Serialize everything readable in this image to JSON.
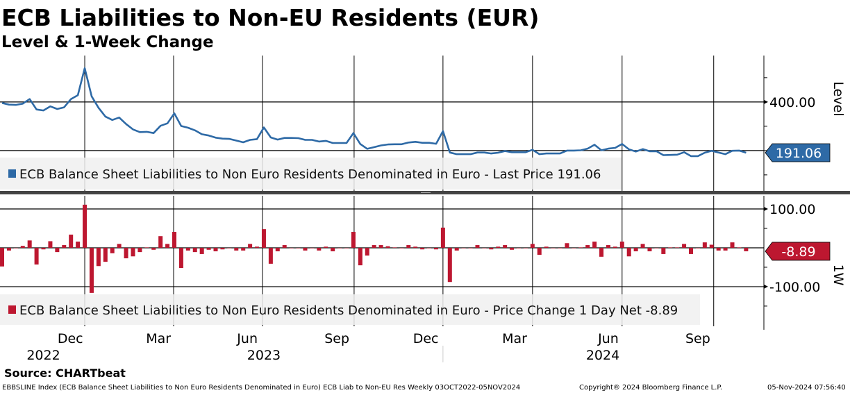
{
  "header": {
    "title": "ECB Liabilities to Non-EU Residents (EUR)",
    "subtitle": "Level & 1-Week Change"
  },
  "footer": {
    "source": "Source: CHARTbeat",
    "description": "EBBSLINE Index (ECB Balance Sheet Liabilities to Non Euro Residents Denominated in Euro) ECB Liab to Non-EU Res  Weekly 03OCT2022-05NOV2024",
    "copyright": "Copyright® 2024 Bloomberg Finance L.P.",
    "timestamp": "05-Nov-2024 07:56:40"
  },
  "colors": {
    "level": "#2e6aa6",
    "change": "#bd1730",
    "legend_bg": "#f0f0f0"
  },
  "chart_data": [
    {
      "type": "line",
      "title": "Level",
      "ylabel": "Level",
      "ylim": [
        34,
        591
      ],
      "yticks": [
        {
          "value": 400,
          "label": "400.00"
        }
      ],
      "minor_yticks": [
        100,
        200,
        300,
        500
      ],
      "gridlines_y": [
        200,
        400
      ],
      "legend": "ECB Balance Sheet Liabilities to Non Euro Residents Denominated in Euro - Last Price 191.06",
      "last_label": "191.06",
      "x_start": "03OCT2022",
      "x_end": "05NOV2024",
      "frequency": "Weekly",
      "values": [
        396,
        389,
        388,
        393,
        412,
        369,
        365,
        382,
        371,
        378,
        412,
        428,
        539,
        423,
        376,
        340,
        326,
        336,
        309,
        287,
        276,
        277,
        272,
        302,
        312,
        353,
        301,
        294,
        283,
        267,
        262,
        253,
        249,
        248,
        241,
        234,
        244,
        247,
        295,
        254,
        245,
        252,
        252,
        251,
        244,
        244,
        237,
        240,
        231,
        231,
        231,
        272,
        227,
        207,
        214,
        221,
        225,
        226,
        226,
        233,
        236,
        232,
        232,
        228,
        280,
        192,
        185,
        185,
        185,
        192,
        192,
        188,
        191,
        198,
        193,
        193,
        193,
        203,
        185,
        188,
        188,
        188,
        200,
        200,
        201,
        208,
        224,
        201,
        208,
        211,
        227,
        205,
        196,
        206,
        197,
        197,
        181,
        182,
        183,
        193,
        177,
        177,
        191,
        199,
        192,
        185,
        199,
        200,
        191.06
      ]
    },
    {
      "type": "bar",
      "title": "1W",
      "ylabel": "1W",
      "ylim": [
        -202,
        134
      ],
      "yticks": [
        {
          "value": 100,
          "label": "100.00"
        },
        {
          "value": -100,
          "label": "-100.00"
        }
      ],
      "minor_yticks": [
        50,
        -50,
        -150
      ],
      "gridlines_y": [
        100,
        0,
        -100
      ],
      "legend": "ECB Balance Sheet Liabilities to Non Euro Residents Denominated in Euro - Price Change 1 Day Net -8.89",
      "last_label": "-8.89",
      "values": [
        -48,
        -7,
        -1,
        5,
        19,
        -43,
        -4,
        17,
        -11,
        7,
        34,
        16,
        111,
        -116,
        -47,
        -36,
        -14,
        10,
        -27,
        -22,
        -11,
        1,
        -5,
        30,
        10,
        41,
        -52,
        -7,
        -11,
        -16,
        -5,
        -9,
        -4,
        -1,
        -7,
        -7,
        10,
        3,
        48,
        -41,
        -9,
        7,
        0,
        -1,
        -7,
        0,
        -7,
        3,
        -9,
        0,
        0,
        41,
        -45,
        -20,
        7,
        7,
        4,
        1,
        0,
        7,
        3,
        -4,
        0,
        -4,
        52,
        -88,
        -7,
        0,
        0,
        7,
        0,
        -4,
        3,
        7,
        -5,
        0,
        0,
        10,
        -18,
        3,
        0,
        0,
        12,
        0,
        1,
        7,
        16,
        -23,
        7,
        3,
        16,
        -22,
        -9,
        10,
        -9,
        0,
        -16,
        1,
        1,
        10,
        -16,
        0,
        14,
        8,
        -7,
        -7,
        14,
        1,
        -8.89
      ]
    }
  ],
  "x_axis": {
    "gridlines_week_index": [
      12,
      24.9,
      37.8,
      51.1,
      64,
      77,
      90,
      103.3
    ],
    "months": [
      {
        "label": "Dec",
        "week": 9.9
      },
      {
        "label": "Mar",
        "week": 22.7
      },
      {
        "label": "Jun",
        "week": 35.6
      },
      {
        "label": "Sep",
        "week": 48.6
      },
      {
        "label": "Dec",
        "week": 61.5
      },
      {
        "label": "Mar",
        "week": 74.4
      },
      {
        "label": "Jun",
        "week": 88.0
      },
      {
        "label": "Sep",
        "week": 101.0
      }
    ],
    "years": [
      {
        "label": "2022",
        "week": 6
      },
      {
        "label": "2023",
        "week": 38
      },
      {
        "label": "2024",
        "week": 87.2
      }
    ],
    "year_separators_week": [
      64
    ]
  }
}
